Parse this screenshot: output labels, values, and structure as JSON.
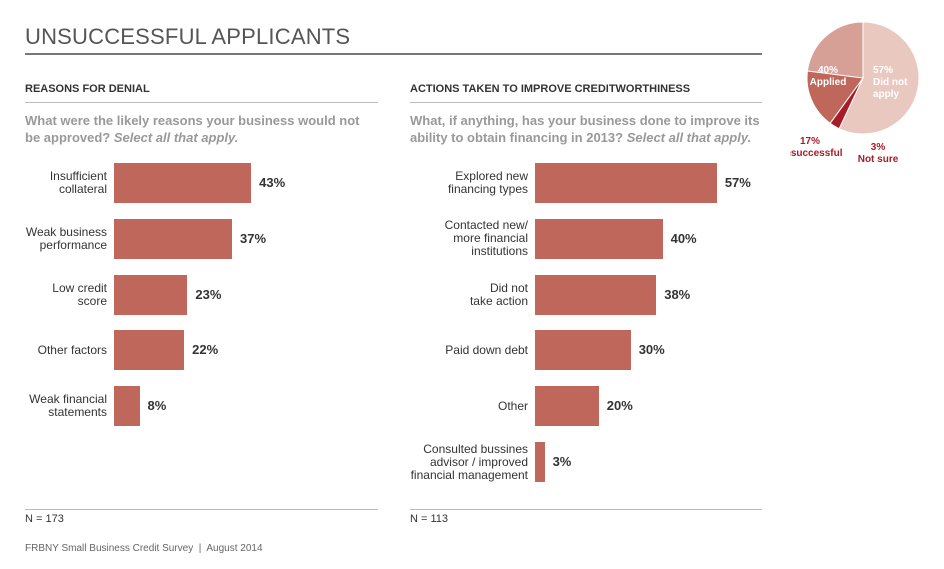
{
  "header": {
    "title": "UNSUCCESSFUL APPLICANTS"
  },
  "footer": {
    "source": "FRBNY Small Business Credit Survey  |  August 2014"
  },
  "chart_data": [
    {
      "type": "bar",
      "orientation": "horizontal",
      "title": "REASONS FOR DENIAL",
      "subtitle": "What were the likely reasons your business would not be approved?",
      "subtitle_emphasis": "Select all that apply.",
      "categories": [
        "Insufficient\ncollateral",
        "Weak business\nperformance",
        "Low credit\nscore",
        "Other factors",
        "Weak financial\nstatements"
      ],
      "values": [
        43,
        37,
        23,
        22,
        8
      ],
      "value_labels": [
        "43%",
        "37%",
        "23%",
        "22%",
        "8%"
      ],
      "color": "#c0675c",
      "note": "N = 173"
    },
    {
      "type": "bar",
      "orientation": "horizontal",
      "title": "ACTIONS TAKEN TO IMPROVE CREDITWORTHINESS",
      "subtitle": "What, if anything, has your business done to improve its ability to obtain financing in 2013?",
      "subtitle_emphasis": "Select all that apply.",
      "categories": [
        "Explored new\nfinancing types",
        "Contacted new/\nmore financial\ninstitutions",
        "Did not\ntake action",
        "Paid down debt",
        "Other",
        "Consulted bussines\nadvisor / improved\nfinancial management"
      ],
      "values": [
        57,
        40,
        38,
        30,
        20,
        3
      ],
      "value_labels": [
        "57%",
        "40%",
        "38%",
        "30%",
        "20%",
        "3%"
      ],
      "color": "#c0675c",
      "note": "N = 113"
    },
    {
      "type": "pie",
      "categories": [
        "Applied",
        "Did not\napply",
        "Unsuccessful",
        "Not sure"
      ],
      "values": [
        40,
        57,
        17,
        3
      ],
      "value_labels": [
        "40%",
        "57%",
        "17%",
        "3%"
      ],
      "colors": [
        "#d6a096",
        "#e9c8c0",
        "#c0675c",
        "#a81c2a"
      ]
    }
  ]
}
